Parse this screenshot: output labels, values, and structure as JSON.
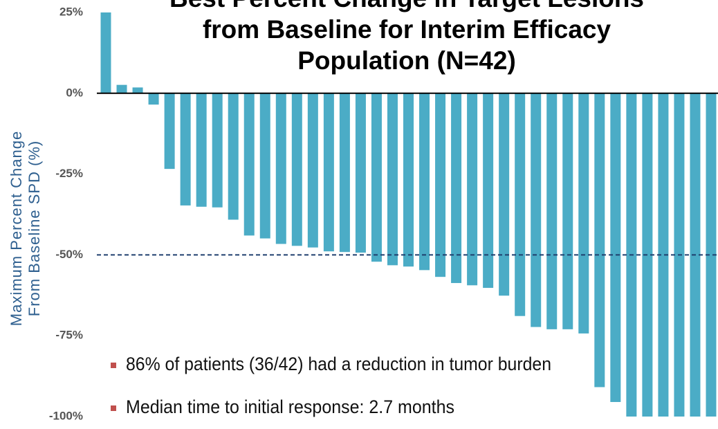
{
  "chart_data": {
    "type": "bar",
    "title": [
      "Best Percent Change in Target Lesions",
      "from Baseline for Interim Efficacy",
      "Population (N=42)"
    ],
    "y_label": [
      "Maximum Percent Change",
      "From Baseline SPD (%)"
    ],
    "values": [
      25,
      2.6,
      1.8,
      -3.5,
      -23.4,
      -34.7,
      -35.1,
      -35.3,
      -39.1,
      -44,
      -44.9,
      -46.6,
      -47.2,
      -47.7,
      -48.9,
      -49.1,
      -49.3,
      -52.1,
      -53.2,
      -53.6,
      -54.7,
      -56.8,
      -58.7,
      -59.4,
      -60.2,
      -62.6,
      -68.9,
      -72.3,
      -73,
      -73,
      -74.3,
      -90.9,
      -95.5,
      -100,
      -100,
      -100,
      -100,
      -100,
      -100
    ],
    "color": "#4bacc6",
    "ylim": [
      -100,
      25
    ],
    "yticks": [
      {
        "value": 25,
        "label": "25%"
      },
      {
        "value": 0,
        "label": "0%"
      },
      {
        "value": -25,
        "label": "-25%"
      },
      {
        "value": -50,
        "label": "-50%"
      },
      {
        "value": -75,
        "label": "-75%"
      },
      {
        "value": -100,
        "label": "-100%"
      }
    ],
    "reference_line": -50,
    "annotations": [
      "86% of patients (36/42) had a reduction in tumor burden",
      "Median time to initial response: 2.7 months"
    ],
    "annotation_color": "#c0504d"
  }
}
